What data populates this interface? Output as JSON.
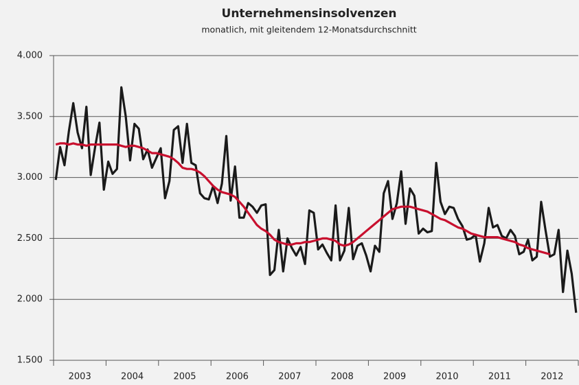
{
  "chart_data": {
    "type": "line",
    "title": "Unternehmensinsolvenzen",
    "subtitle": "monatlich, mit gleitendem 12-Monatsdurchschnitt",
    "xticks": [
      2003,
      2004,
      2005,
      2006,
      2007,
      2008,
      2009,
      2010,
      2011,
      2012
    ],
    "ylim": [
      1500,
      4000
    ],
    "yticks": [
      {
        "value": 1500,
        "label": "1.500"
      },
      {
        "value": 2000,
        "label": "2.000"
      },
      {
        "value": 2500,
        "label": "2.500"
      },
      {
        "value": 3000,
        "label": "3.000"
      },
      {
        "value": 3500,
        "label": "3.500"
      },
      {
        "value": 4000,
        "label": "4.000"
      }
    ],
    "grid": true,
    "series": [
      {
        "color": "#1a1a1a",
        "values": [
          2980,
          3250,
          3100,
          3380,
          3610,
          3370,
          3240,
          3580,
          3020,
          3250,
          3450,
          2900,
          3130,
          3030,
          3070,
          3740,
          3500,
          3140,
          3440,
          3400,
          3150,
          3230,
          3080,
          3160,
          3240,
          2830,
          2970,
          3390,
          3420,
          3120,
          3440,
          3120,
          3100,
          2870,
          2830,
          2820,
          2930,
          2790,
          2950,
          3340,
          2810,
          3090,
          2670,
          2670,
          2790,
          2760,
          2710,
          2770,
          2780,
          2200,
          2240,
          2570,
          2230,
          2500,
          2420,
          2360,
          2430,
          2290,
          2730,
          2710,
          2410,
          2450,
          2380,
          2320,
          2770,
          2320,
          2400,
          2750,
          2330,
          2440,
          2460,
          2360,
          2230,
          2440,
          2390,
          2870,
          2970,
          2660,
          2790,
          3050,
          2620,
          2910,
          2850,
          2540,
          2580,
          2550,
          2560,
          3120,
          2800,
          2700,
          2760,
          2750,
          2660,
          2600,
          2490,
          2500,
          2530,
          2310,
          2460,
          2750,
          2590,
          2610,
          2520,
          2500,
          2570,
          2520,
          2370,
          2390,
          2490,
          2320,
          2350,
          2800,
          2570,
          2350,
          2370,
          2570,
          2060,
          2400,
          2210,
          1890
        ]
      },
      {
        "color": "#c8102e",
        "values": [
          3270,
          3280,
          3280,
          3270,
          3280,
          3270,
          3270,
          3260,
          3270,
          3270,
          3270,
          3270,
          3270,
          3270,
          3270,
          3260,
          3250,
          3260,
          3260,
          3250,
          3240,
          3220,
          3200,
          3200,
          3190,
          3180,
          3170,
          3150,
          3120,
          3080,
          3070,
          3070,
          3060,
          3040,
          3010,
          2970,
          2930,
          2900,
          2880,
          2870,
          2860,
          2840,
          2800,
          2760,
          2710,
          2660,
          2610,
          2580,
          2560,
          2530,
          2490,
          2470,
          2460,
          2450,
          2450,
          2460,
          2460,
          2470,
          2470,
          2480,
          2490,
          2500,
          2500,
          2490,
          2480,
          2450,
          2440,
          2450,
          2470,
          2500,
          2530,
          2560,
          2590,
          2620,
          2650,
          2680,
          2710,
          2740,
          2750,
          2760,
          2760,
          2760,
          2750,
          2740,
          2730,
          2720,
          2700,
          2680,
          2660,
          2650,
          2630,
          2610,
          2590,
          2580,
          2560,
          2540,
          2530,
          2520,
          2510,
          2510,
          2510,
          2510,
          2500,
          2490,
          2480,
          2470,
          2450,
          2440,
          2420,
          2410,
          2400,
          2390,
          2380,
          2370,
          null,
          null,
          null,
          null,
          null,
          null
        ]
      }
    ]
  }
}
